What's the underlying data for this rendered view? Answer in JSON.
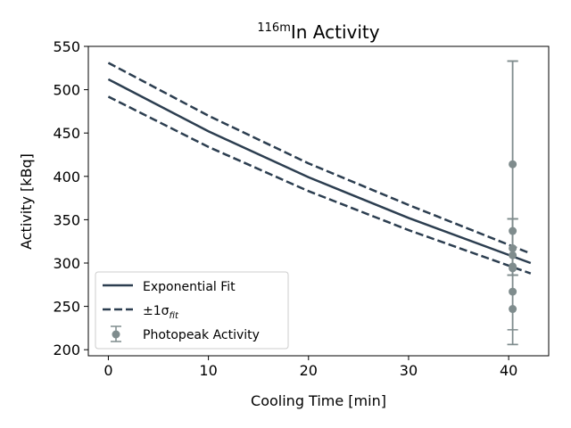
{
  "chart_data": {
    "type": "line",
    "title_sup": "116m",
    "title_main": "In Activity",
    "xlabel": "Cooling Time [min]",
    "ylabel": "Activity [kBq]",
    "xlim": [
      -2,
      44
    ],
    "ylim": [
      193,
      550
    ],
    "xticks": [
      0,
      10,
      20,
      30,
      40
    ],
    "yticks": [
      200,
      250,
      300,
      350,
      400,
      450,
      500,
      550
    ],
    "grid": false,
    "legend_position": "lower-left",
    "series": [
      {
        "name": "Exponential Fit",
        "style": "solid",
        "color": "#2c3e50",
        "x": [
          0,
          10,
          20,
          30,
          42.2
        ],
        "y": [
          512,
          452,
          399,
          352,
          300
        ]
      },
      {
        "name": "±1σ_fit",
        "legend_main": "±1σ",
        "legend_sub": "fit",
        "style": "dashed",
        "color": "#2c3e50",
        "upper": {
          "x": [
            0,
            10,
            20,
            30,
            42.2
          ],
          "y": [
            531,
            470,
            415,
            367,
            311
          ]
        },
        "lower": {
          "x": [
            0,
            10,
            20,
            30,
            42.2
          ],
          "y": [
            492,
            434,
            383,
            338,
            288
          ]
        }
      }
    ],
    "points": {
      "name": "Photopeak Activity",
      "color": "#7f8c8d",
      "x": [
        40.4,
        40.4,
        40.4,
        40.4,
        40.4,
        40.4,
        40.4,
        40.4
      ],
      "y": [
        414,
        337,
        317,
        309,
        296,
        294,
        267,
        247
      ],
      "yerr_low": [
        206,
        286,
        286,
        286,
        286,
        286,
        223,
        206
      ],
      "yerr_high": [
        533,
        351,
        351,
        351,
        351,
        351,
        533,
        533
      ]
    }
  }
}
